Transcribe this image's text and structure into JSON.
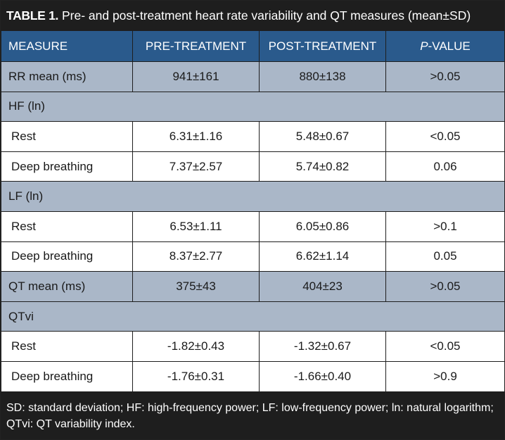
{
  "title": {
    "label": "TABLE 1.",
    "text": "Pre- and post-treatment heart rate variability and QT measures (mean±SD)"
  },
  "header": {
    "measure": "MEASURE",
    "pre": "PRE-TREATMENT",
    "post": "POST-TREATMENT",
    "p_italic": "P",
    "p_rest": "-VALUE"
  },
  "rows": [
    {
      "measure": "RR mean (ms)",
      "pre": "941±161",
      "post": "880±138",
      "p": ">0.05"
    },
    {
      "measure": "HF (ln)"
    },
    {
      "measure": "Rest",
      "pre": "6.31±1.16",
      "post": "5.48±0.67",
      "p": "<0.05"
    },
    {
      "measure": "Deep breathing",
      "pre": "7.37±2.57",
      "post": "5.74±0.82",
      "p": "0.06"
    },
    {
      "measure": "LF (ln)"
    },
    {
      "measure": "Rest",
      "pre": "6.53±1.11",
      "post": "6.05±0.86",
      "p": ">0.1"
    },
    {
      "measure": "Deep breathing",
      "pre": "8.37±2.77",
      "post": "6.62±1.14",
      "p": "0.05"
    },
    {
      "measure": "QT mean (ms)",
      "pre": "375±43",
      "post": "404±23",
      "p": ">0.05"
    },
    {
      "measure": "QTvi"
    },
    {
      "measure": "Rest",
      "pre": "-1.82±0.43",
      "post": "-1.32±0.67",
      "p": "<0.05"
    },
    {
      "measure": "Deep breathing",
      "pre": "-1.76±0.31",
      "post": "-1.66±0.40",
      "p": ">0.9"
    }
  ],
  "footer": "SD: standard deviation; HF: high-frequency power; LF: low-frequency power; ln: natural logarithm; QTvi: QT variability index.",
  "colors": {
    "header_bg": "#2a5a8c",
    "shaded_row": "#aab7c8",
    "frame": "#1e1e1e"
  }
}
